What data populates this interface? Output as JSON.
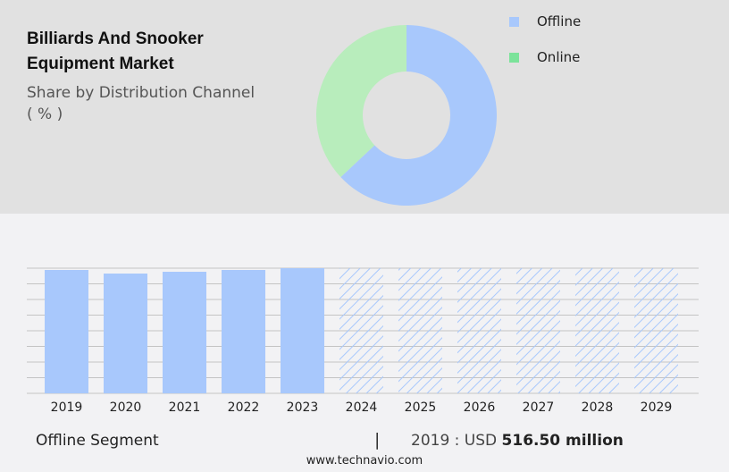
{
  "header": {
    "title": "Billiards And Snooker Equipment Market",
    "subtitle": "Share by Distribution Channel",
    "unit": "( % )"
  },
  "legend": [
    {
      "label": "Offline",
      "color": "#a8c8fc"
    },
    {
      "label": "Online",
      "color": "#7be39a"
    }
  ],
  "footer": {
    "segment": "Offline Segment",
    "separator": "|",
    "year_label": "2019 : USD",
    "value": "516.50 million",
    "url": "www.technavio.com"
  },
  "chart_data": [
    {
      "type": "pie",
      "title": "Share by Distribution Channel (%)",
      "variant": "donut",
      "categories": [
        "Offline",
        "Online"
      ],
      "values": [
        63,
        37
      ],
      "colors": [
        "#a8c8fc",
        "#b8edbc"
      ]
    },
    {
      "type": "bar",
      "title": "Offline Segment",
      "categories": [
        "2019",
        "2020",
        "2021",
        "2022",
        "2023",
        "2024",
        "2025",
        "2026",
        "2027",
        "2028",
        "2029"
      ],
      "values": [
        516.5,
        501.5,
        509.0,
        516.5,
        524.0,
        null,
        null,
        null,
        null,
        null,
        null
      ],
      "forecast_years": [
        "2024",
        "2025",
        "2026",
        "2027",
        "2028",
        "2029"
      ],
      "forecast_style": "hatched",
      "xlabel": "",
      "ylabel": "USD million",
      "grid": true,
      "bar_color": "#a8c8fc"
    }
  ]
}
